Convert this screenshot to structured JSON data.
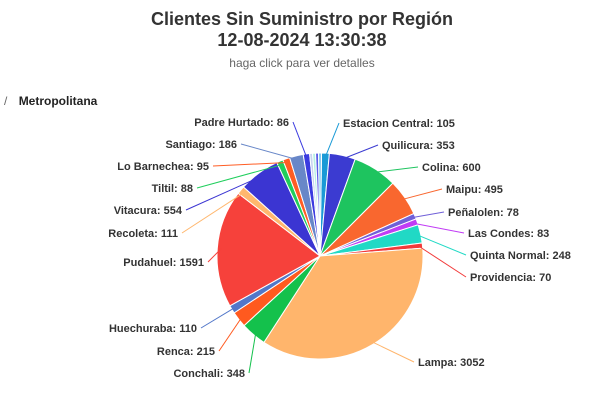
{
  "header": {
    "title_line1": "Clientes Sin Suministro por Región",
    "title_line2": "12-08-2024 13:30:38",
    "subtitle": "haga click para ver detalles"
  },
  "breadcrumb": {
    "separator": "/",
    "current": "Metropolitana"
  },
  "chart_data": {
    "type": "pie",
    "title": "Clientes Sin Suministro por Región",
    "subtitle": "haga click para ver detalles",
    "slices": [
      {
        "label": "Estacion Central",
        "value": 105,
        "color": "#1a9ad6"
      },
      {
        "label": "Quilicura",
        "value": 353,
        "color": "#3b3bd1"
      },
      {
        "label": "Colina",
        "value": 600,
        "color": "#1ec45f"
      },
      {
        "label": "Maipu",
        "value": 495,
        "color": "#f9672f"
      },
      {
        "label": "Peñalolen",
        "value": 78,
        "color": "#7060d8"
      },
      {
        "label": "Las Condes",
        "value": 83,
        "color": "#c13cf5"
      },
      {
        "label": "Quinta Normal",
        "value": 248,
        "color": "#21d9c5"
      },
      {
        "label": "Providencia",
        "value": 70,
        "color": "#f23a3a"
      },
      {
        "label": "Lampa",
        "value": 3052,
        "color": "#ffb56c"
      },
      {
        "label": "Conchali",
        "value": 348,
        "color": "#14c14c"
      },
      {
        "label": "Renca",
        "value": 215,
        "color": "#ff5a1f"
      },
      {
        "label": "Huechuraba",
        "value": 110,
        "color": "#5277c9"
      },
      {
        "label": "Pudahuel",
        "value": 1591,
        "color": "#f6413b"
      },
      {
        "label": "Recoleta",
        "value": 111,
        "color": "#ffb76e"
      },
      {
        "label": "Vitacura",
        "value": 554,
        "color": "#3b35d2"
      },
      {
        "label": "Tiltil",
        "value": 88,
        "color": "#1fce5c"
      },
      {
        "label": "Lo Barnechea",
        "value": 95,
        "color": "#ff5d24"
      },
      {
        "label": "Santiago",
        "value": 186,
        "color": "#6887c8"
      },
      {
        "label": "Padre Hurtado",
        "value": 86,
        "color": "#3b3be0"
      }
    ],
    "small_slice_colors": [
      "#c7d4f0",
      "#b6f0e4",
      "#5c5ce8",
      "#7ec8f0"
    ]
  }
}
